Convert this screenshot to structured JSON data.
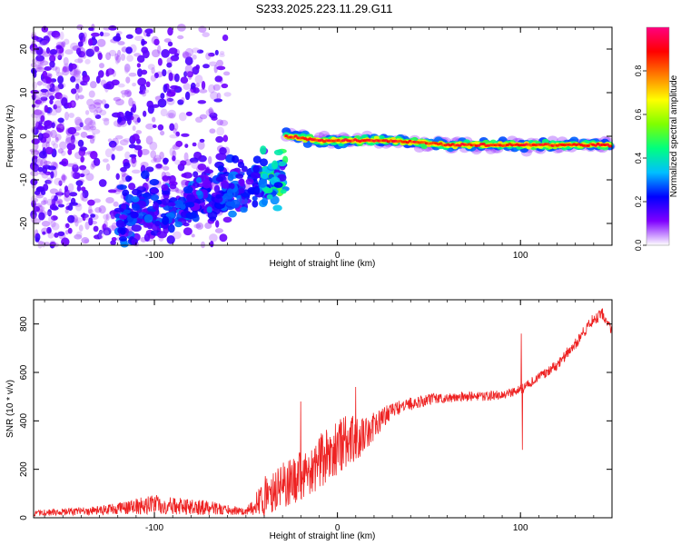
{
  "title": "S233.2025.223.11.29.G11",
  "chart_data": [
    {
      "type": "heatmap",
      "xlabel": "Height of straight line (km)",
      "ylabel": "Frequency (Hz)",
      "xlim": [
        -166,
        150
      ],
      "ylim": [
        -25,
        25
      ],
      "xticks": [
        -100,
        0,
        100
      ],
      "yticks": [
        -20,
        -10,
        0,
        10,
        20
      ],
      "xtick_labels": [
        "-100",
        "0",
        "100"
      ],
      "ytick_labels": [
        "-20",
        "-10",
        "0",
        "10",
        "20"
      ],
      "colorbar": {
        "label": "Normalized spectral amplitude",
        "range": [
          0.0,
          1.0
        ],
        "ticks": [
          0.0,
          0.2,
          0.4,
          0.6,
          0.8
        ],
        "tick_labels": [
          "0.0",
          "0.2",
          "0.4",
          "0.6",
          "0.8"
        ],
        "colormap": [
          "#ffffff",
          "#7f00ff",
          "#0000ff",
          "#00bfff",
          "#00ff7f",
          "#7fff00",
          "#ffff00",
          "#ff7f00",
          "#ff0000",
          "#ff0080"
        ]
      },
      "features": [
        {
          "name": "scattered noise",
          "x_range": [
            -166,
            -60
          ],
          "freq_range": [
            -25,
            25
          ],
          "amplitude": 0.05
        },
        {
          "name": "rising echo",
          "x_range": [
            -120,
            -28
          ],
          "freq_range": [
            -20,
            -8
          ],
          "amplitude": 0.2
        },
        {
          "name": "strong echo",
          "x_range": [
            -28,
            150
          ],
          "freq_center": [
            [
              -28,
              0
            ],
            [
              -10,
              -1
            ],
            [
              30,
              -1
            ],
            [
              60,
              -2
            ],
            [
              95,
              -2
            ],
            [
              150,
              -2
            ]
          ],
          "amplitude": 0.95
        }
      ]
    },
    {
      "type": "line",
      "xlabel": "Height of straight line (km)",
      "ylabel": "SNR (10 * v/v)",
      "xlim": [
        -166,
        150
      ],
      "ylim": [
        0,
        900
      ],
      "xticks": [
        -100,
        0,
        100
      ],
      "yticks": [
        0,
        200,
        400,
        600,
        800
      ],
      "xtick_labels": [
        "-100",
        "0",
        "100"
      ],
      "ytick_labels": [
        "0",
        "200",
        "400",
        "600",
        "800"
      ],
      "color": "#ee2222",
      "trend": [
        [
          -166,
          20
        ],
        [
          -130,
          30
        ],
        [
          -100,
          55
        ],
        [
          -70,
          40
        ],
        [
          -50,
          25
        ],
        [
          -40,
          90
        ],
        [
          -25,
          150
        ],
        [
          -10,
          230
        ],
        [
          0,
          280
        ],
        [
          5,
          320
        ],
        [
          15,
          330
        ],
        [
          25,
          420
        ],
        [
          35,
          460
        ],
        [
          50,
          490
        ],
        [
          70,
          500
        ],
        [
          90,
          505
        ],
        [
          100,
          530
        ],
        [
          110,
          580
        ],
        [
          120,
          630
        ],
        [
          130,
          720
        ],
        [
          140,
          820
        ],
        [
          145,
          840
        ],
        [
          150,
          780
        ]
      ],
      "noise_amplitude": [
        [
          -166,
          12
        ],
        [
          -130,
          18
        ],
        [
          -100,
          40
        ],
        [
          -70,
          30
        ],
        [
          -50,
          12
        ],
        [
          -40,
          80
        ],
        [
          -20,
          110
        ],
        [
          0,
          120
        ],
        [
          15,
          80
        ],
        [
          30,
          30
        ],
        [
          60,
          20
        ],
        [
          90,
          20
        ],
        [
          100,
          20
        ],
        [
          110,
          18
        ],
        [
          130,
          25
        ],
        [
          150,
          25
        ]
      ],
      "spikes": [
        [
          100.5,
          760
        ],
        [
          101,
          280
        ],
        [
          -20,
          480
        ],
        [
          10,
          540
        ]
      ]
    }
  ]
}
